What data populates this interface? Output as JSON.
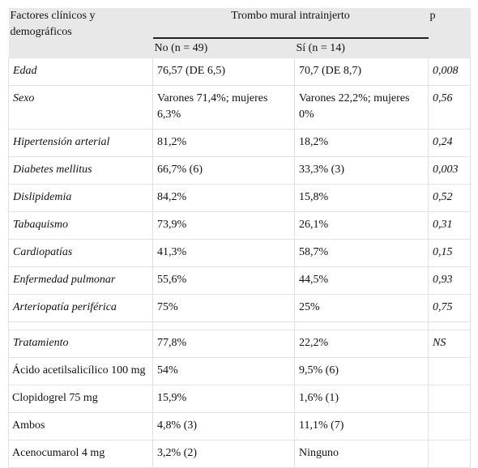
{
  "header": {
    "factors": "Factores clínicos y demográficos",
    "group": "Trombo mural intrainjerto",
    "p": "p",
    "subgroups": [
      "No (n = 49)",
      "Sí (n = 14)"
    ]
  },
  "sections": [
    {
      "rows": [
        [
          "Edad",
          "76,57 (DE 6,5)",
          "70,7 (DE 8,7)",
          "0,008"
        ],
        [
          "Sexo",
          "Varones 71,4%; mujeres 6,3%",
          "Varones 22,2%; mujeres 0%",
          "0,56"
        ],
        [
          "Hipertensión arterial",
          "81,2%",
          "18,2%",
          "0,24"
        ],
        [
          "Diabetes mellitus",
          "66,7% (6)",
          "33,3% (3)",
          "0,003"
        ],
        [
          "Dislipidemia",
          "84,2%",
          "15,8%",
          "0,52"
        ],
        [
          "Tabaquismo",
          "73,9%",
          "26,1%",
          "0,31"
        ],
        [
          "Cardiopatías",
          "41,3%",
          "58,7%",
          "0,15"
        ],
        [
          "Enfermedad pulmonar",
          "55,6%",
          "44,5%",
          "0,93"
        ],
        [
          "Arteriopatía periférica",
          "75%",
          "25%",
          "0,75"
        ]
      ]
    },
    {
      "rows": [
        [
          "Tratamiento",
          "77,8%",
          "22,2%",
          "NS"
        ],
        [
          "Ácido acetilsalicílico 100 mg",
          "54%",
          "9,5% (6)"
        ],
        [
          "Clopidogrel 75 mg",
          "15,9%",
          "1,6% (1)"
        ],
        [
          "Ambos",
          "4,8% (3)",
          "11,1% (7)"
        ],
        [
          "Acenocumarol 4 mg",
          "3,2% (2)",
          "Ninguno"
        ]
      ]
    }
  ]
}
